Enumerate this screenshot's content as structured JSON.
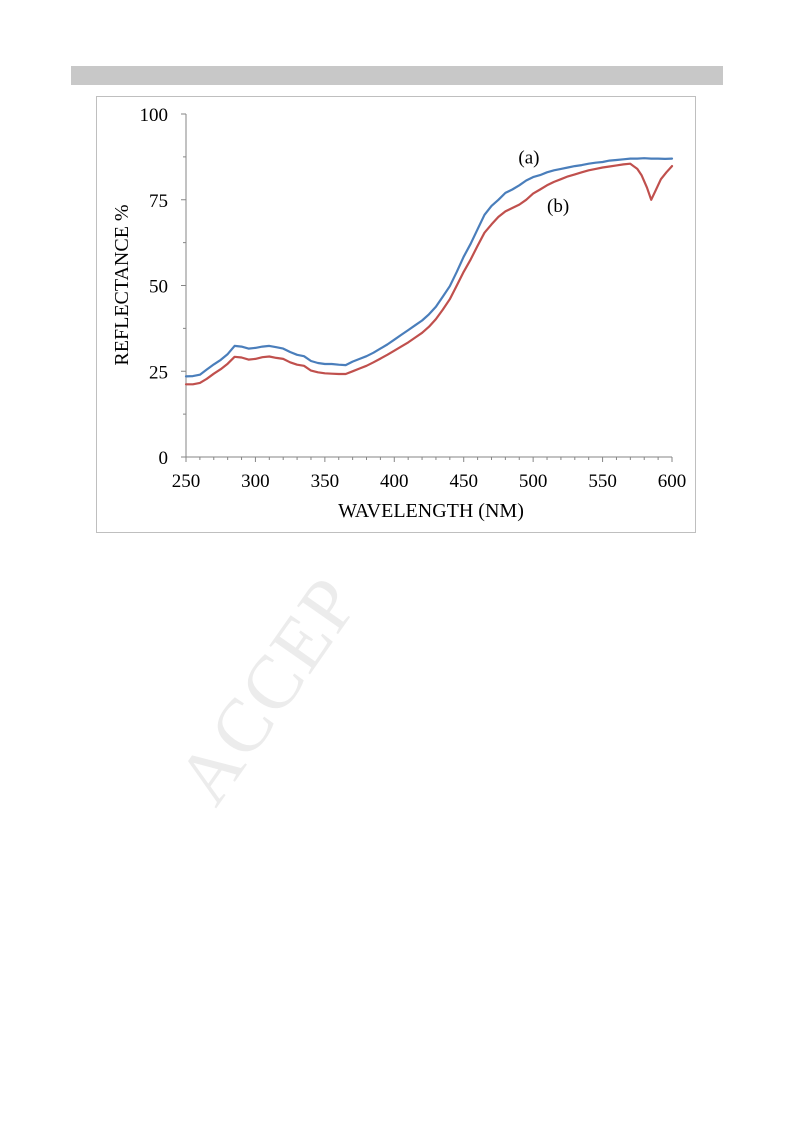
{
  "page": {
    "watermark": "ACCEP"
  },
  "chart_data": {
    "type": "line",
    "title": "",
    "xlabel": "WAVELENGTH (NM)",
    "ylabel": "REFLECTANCE %",
    "xlim": [
      250,
      600
    ],
    "ylim": [
      0,
      100
    ],
    "xticks": [
      250,
      300,
      350,
      400,
      450,
      500,
      550,
      600
    ],
    "yticks": [
      0,
      25,
      50,
      75,
      100
    ],
    "grid": false,
    "legend": "none",
    "series": [
      {
        "name": "(a)",
        "color": "#4a7ebb",
        "x": [
          250,
          255,
          260,
          265,
          270,
          275,
          280,
          285,
          290,
          295,
          300,
          305,
          310,
          315,
          320,
          325,
          330,
          335,
          340,
          345,
          350,
          355,
          360,
          365,
          370,
          375,
          380,
          385,
          390,
          395,
          400,
          405,
          410,
          415,
          420,
          425,
          430,
          435,
          440,
          445,
          450,
          455,
          460,
          465,
          470,
          475,
          480,
          485,
          490,
          495,
          500,
          505,
          510,
          515,
          520,
          525,
          530,
          535,
          540,
          545,
          550,
          555,
          560,
          565,
          570,
          575,
          580,
          585,
          590,
          595,
          600
        ],
        "y": [
          23.5,
          23.6,
          24,
          25.5,
          27,
          28.3,
          30,
          32.4,
          32.2,
          31.6,
          31.8,
          32.2,
          32.4,
          32,
          31.6,
          30.6,
          29.8,
          29.4,
          28,
          27.4,
          27.1,
          27.1,
          26.9,
          26.8,
          27.8,
          28.6,
          29.4,
          30.4,
          31.6,
          32.8,
          34.2,
          35.6,
          37,
          38.4,
          39.8,
          41.6,
          43.8,
          46.8,
          49.8,
          54,
          58.4,
          62.2,
          66.4,
          70.6,
          73.2,
          75,
          77,
          78,
          79.2,
          80.6,
          81.6,
          82.2,
          83,
          83.6,
          84,
          84.4,
          84.8,
          85.1,
          85.5,
          85.8,
          86,
          86.4,
          86.6,
          86.8,
          87,
          87,
          87.1,
          87,
          87,
          86.9,
          87
        ]
      },
      {
        "name": "(b)",
        "color": "#c0504d",
        "x": [
          250,
          255,
          260,
          265,
          270,
          275,
          280,
          285,
          290,
          295,
          300,
          305,
          310,
          315,
          320,
          325,
          330,
          335,
          340,
          345,
          350,
          355,
          360,
          365,
          370,
          375,
          380,
          385,
          390,
          395,
          400,
          405,
          410,
          415,
          420,
          425,
          430,
          435,
          440,
          445,
          450,
          455,
          460,
          465,
          470,
          475,
          480,
          485,
          490,
          495,
          500,
          505,
          510,
          515,
          520,
          525,
          530,
          535,
          540,
          545,
          550,
          555,
          560,
          565,
          570,
          575,
          578,
          582,
          585,
          588,
          592,
          596,
          600
        ],
        "y": [
          21.2,
          21.2,
          21.6,
          22.8,
          24.3,
          25.6,
          27.2,
          29.2,
          29,
          28.4,
          28.6,
          29.1,
          29.3,
          28.9,
          28.6,
          27.6,
          26.9,
          26.6,
          25.2,
          24.7,
          24.4,
          24.3,
          24.2,
          24.2,
          25,
          25.8,
          26.6,
          27.6,
          28.7,
          29.8,
          31,
          32.2,
          33.4,
          34.8,
          36.2,
          38,
          40.2,
          43,
          46,
          50,
          54,
          57.6,
          61.6,
          65.4,
          67.8,
          70,
          71.6,
          72.6,
          73.6,
          75,
          76.8,
          78,
          79.2,
          80.2,
          81,
          81.8,
          82.4,
          83,
          83.6,
          84,
          84.4,
          84.7,
          85,
          85.3,
          85.5,
          84,
          82.2,
          78.5,
          75,
          77.5,
          81,
          83,
          84.8
        ]
      }
    ],
    "annotations": [
      {
        "text": "(a)",
        "x": 497,
        "y": 85.5
      },
      {
        "text": "(b)",
        "x": 518,
        "y": 71.5
      }
    ]
  }
}
